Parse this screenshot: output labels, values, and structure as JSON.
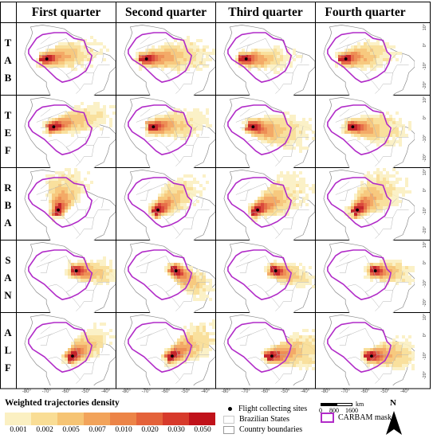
{
  "columns": [
    "First quarter",
    "Second quarter",
    "Third quarter",
    "Fourth quarter"
  ],
  "rows": [
    {
      "label": "T\nA\nB",
      "site": "TAB"
    },
    {
      "label": "T\nE\nF",
      "site": "TEF"
    },
    {
      "label": "R\nB\nA",
      "site": "RBA"
    },
    {
      "label": "S\nA\nN",
      "site": "SAN"
    },
    {
      "label": "A\nL\nF",
      "site": "ALF"
    }
  ],
  "x_ticks": [
    "-80°",
    "-70°",
    "-60°",
    "-50°",
    "-40°"
  ],
  "y_ticks": [
    "10°",
    "0°",
    "-10°",
    "-20°"
  ],
  "legend": {
    "title": "Weighted trajectories density",
    "classes": [
      {
        "value": "0.001",
        "color": "#fbf0c2"
      },
      {
        "value": "0.002",
        "color": "#f9dd95"
      },
      {
        "value": "0.005",
        "color": "#f6c474"
      },
      {
        "value": "0.007",
        "color": "#f2a35a"
      },
      {
        "value": "0.010",
        "color": "#ec8447"
      },
      {
        "value": "0.020",
        "color": "#e4623a"
      },
      {
        "value": "0.030",
        "color": "#d73a2b"
      },
      {
        "value": "0.050",
        "color": "#c0121a"
      }
    ],
    "site_label": "Flight collecting sites",
    "states_label": "Brazilian States",
    "country_label": "Country boundaries",
    "mask_label": "CARBAM mask",
    "mask_color": "#b12bc8"
  },
  "scale": {
    "unit": "km",
    "ticks": [
      "0",
      "800",
      "1600"
    ]
  },
  "north_label": "N",
  "sites": {
    "TAB": {
      "lon": -69.8,
      "lat": -5.8
    },
    "TEF": {
      "lon": -66.3,
      "lat": -3.4
    },
    "RBA": {
      "lon": -64.0,
      "lat": -9.0
    },
    "SAN": {
      "lon": -54.9,
      "lat": -2.9
    },
    "ALF": {
      "lon": -56.8,
      "lat": -9.6
    }
  }
}
